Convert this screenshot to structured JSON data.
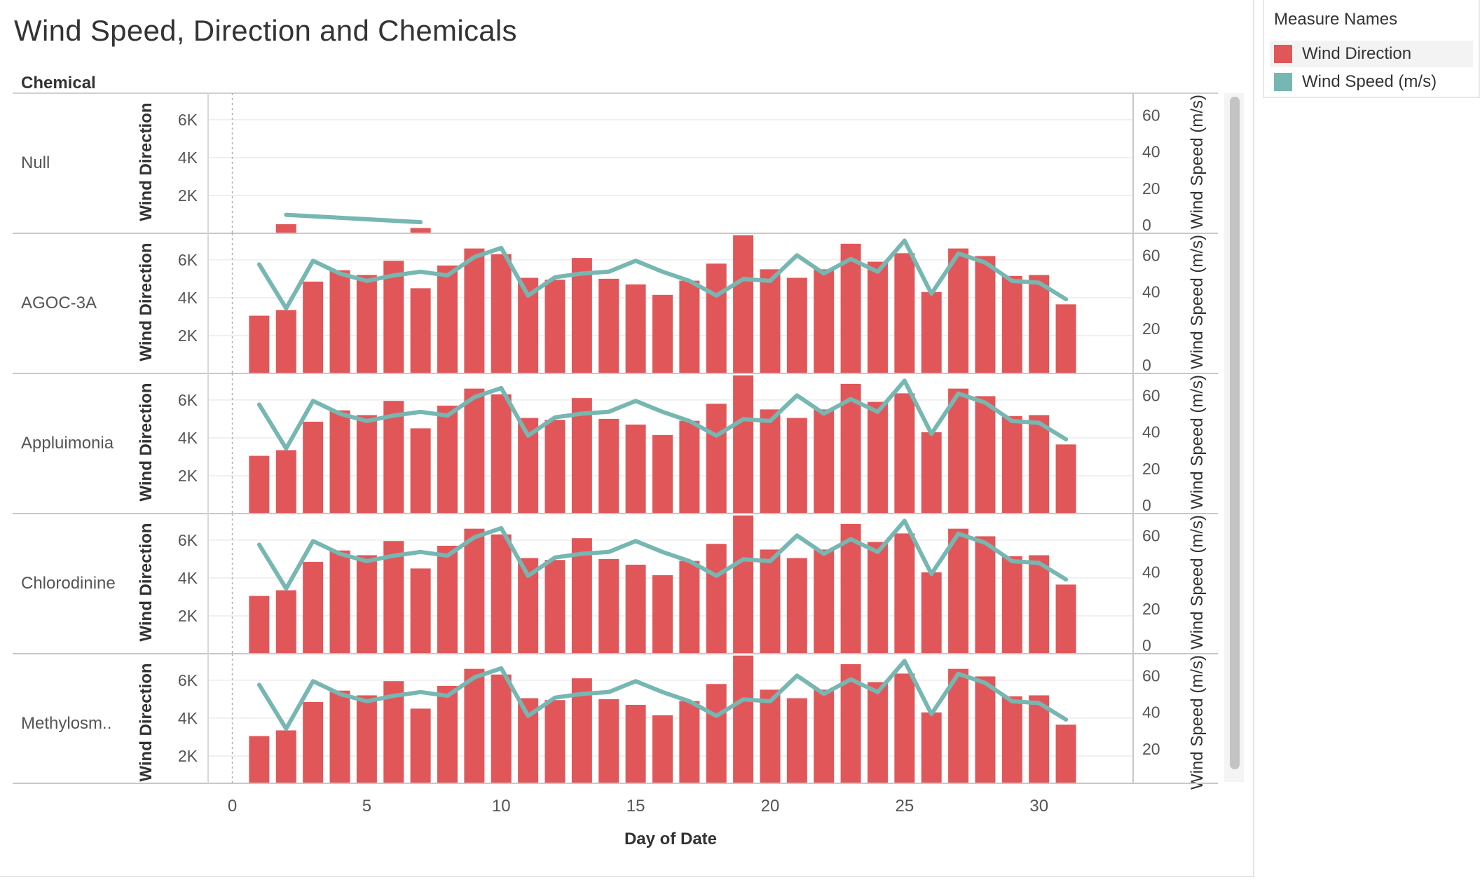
{
  "title": "Wind Speed, Direction and Chemicals",
  "legend": {
    "title": "Measure Names",
    "items": [
      {
        "label": "Wind Direction",
        "color": "#E15759"
      },
      {
        "label": "Wind Speed (m/s)",
        "color": "#76B7B2"
      }
    ]
  },
  "chart_data": {
    "type": "bar",
    "row_header": "Chemical",
    "xlabel": "Day of Date",
    "ylabel_left": "Wind Direction",
    "ylabel_right": "Wind Speed (m/s)",
    "x_ticks": [
      0,
      5,
      10,
      15,
      20,
      25,
      30
    ],
    "x_range": [
      -0.9,
      33.5
    ],
    "left_ticks": [
      "2K",
      "4K",
      "6K"
    ],
    "left_range": [
      0,
      7400
    ],
    "right_ticks": [
      "0",
      "20",
      "40",
      "60"
    ],
    "right_range": [
      0,
      72
    ],
    "grid": true,
    "legend_position": "top-right",
    "colors": {
      "direction": "#E15759",
      "speed": "#76B7B2"
    },
    "rows": [
      {
        "name": "Null",
        "days": [
          2,
          7
        ],
        "direction": [
          480,
          280
        ],
        "speed": [
          5.5,
          1.5
        ]
      },
      {
        "name": "AGOC-3A"
      },
      {
        "name": "Appluimonia"
      },
      {
        "name": "Chlorodinine"
      },
      {
        "name": "Methylosm.."
      }
    ],
    "days": [
      1,
      2,
      3,
      4,
      5,
      6,
      7,
      8,
      9,
      10,
      11,
      12,
      13,
      14,
      15,
      16,
      17,
      18,
      19,
      20,
      21,
      22,
      23,
      24,
      25,
      26,
      27,
      28,
      29,
      30,
      31
    ],
    "direction": [
      3050,
      3350,
      4850,
      5450,
      5200,
      5950,
      4500,
      5700,
      6600,
      6300,
      5050,
      4950,
      6100,
      5000,
      4700,
      4150,
      4900,
      5800,
      7300,
      5500,
      5050,
      5500,
      6850,
      5900,
      6350,
      4300,
      6600,
      6200,
      5150,
      5200,
      3650
    ],
    "speed": [
      55,
      31,
      57,
      50,
      46,
      49,
      51,
      49,
      59,
      64,
      38,
      48,
      50,
      51,
      57,
      51,
      46,
      38,
      47,
      46,
      60,
      50,
      58,
      51,
      68,
      39,
      61,
      56,
      46,
      45,
      36
    ]
  }
}
